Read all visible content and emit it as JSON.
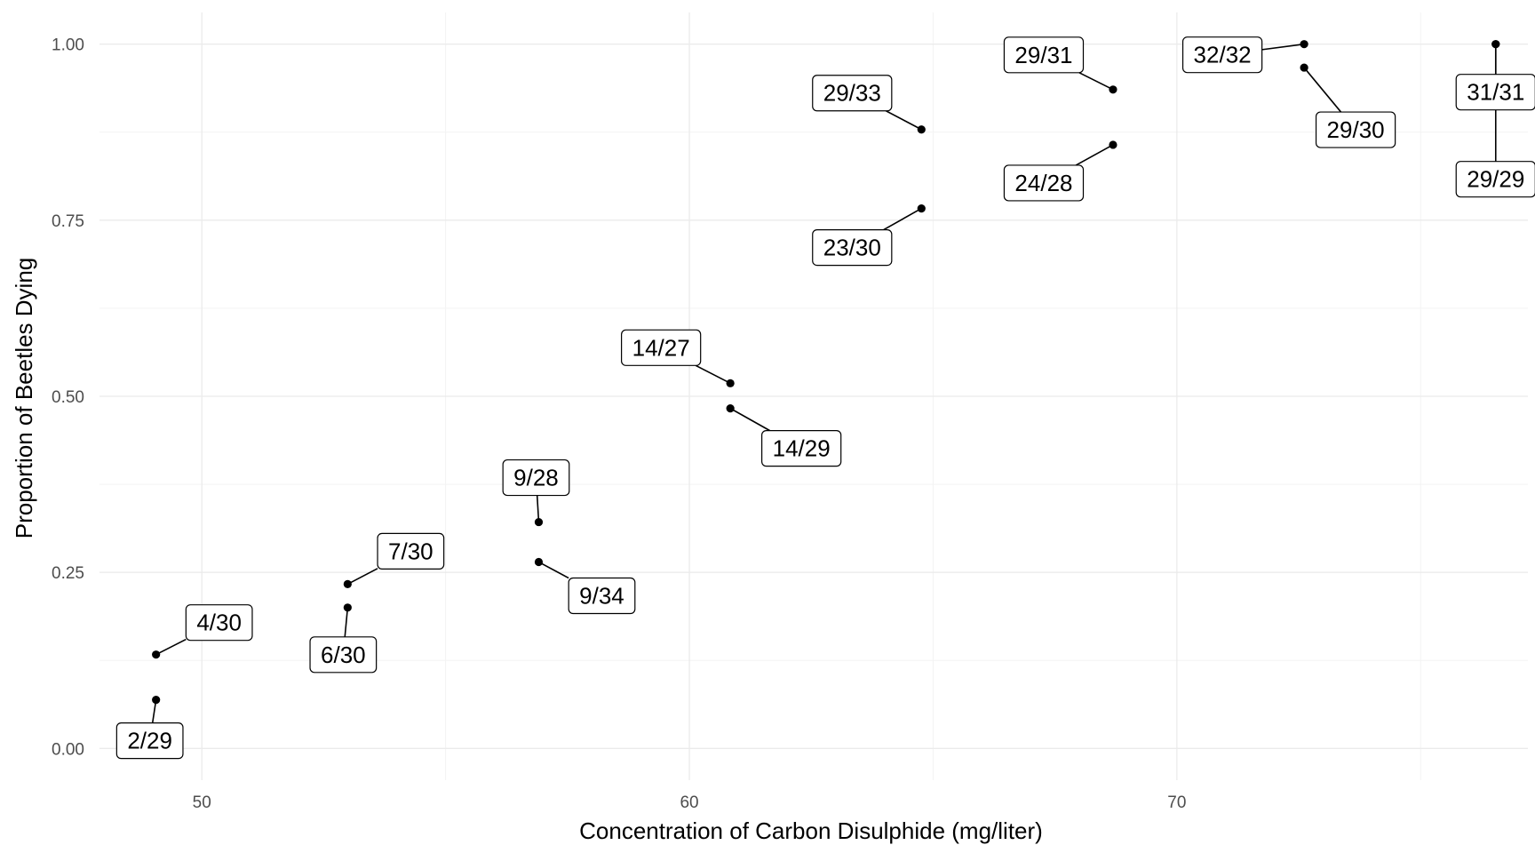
{
  "chart_data": {
    "type": "scatter",
    "title": "",
    "xlabel": "Concentration of Carbon Disulphide (mg/liter)",
    "ylabel": "Proportion of Beetles Dying",
    "xlim": [
      47.9,
      77.2
    ],
    "ylim": [
      -0.045,
      1.045
    ],
    "x_ticks": [
      50,
      60,
      70
    ],
    "x_tick_labels": [
      "50",
      "60",
      "70"
    ],
    "y_ticks": [
      0,
      0.25,
      0.5,
      0.75,
      1
    ],
    "y_tick_labels": [
      "0.00",
      "0.25",
      "0.50",
      "0.75",
      "1.00"
    ],
    "grid": true,
    "legend": "none",
    "points": [
      {
        "x": 49.06,
        "y": 0.069,
        "label": "2/29"
      },
      {
        "x": 49.06,
        "y": 0.1333,
        "label": "4/30"
      },
      {
        "x": 52.99,
        "y": 0.2,
        "label": "6/30"
      },
      {
        "x": 52.99,
        "y": 0.2333,
        "label": "7/30"
      },
      {
        "x": 56.91,
        "y": 0.2647,
        "label": "9/34"
      },
      {
        "x": 56.91,
        "y": 0.3214,
        "label": "9/28"
      },
      {
        "x": 60.84,
        "y": 0.4828,
        "label": "14/29"
      },
      {
        "x": 60.84,
        "y": 0.5185,
        "label": "14/27"
      },
      {
        "x": 64.76,
        "y": 0.7667,
        "label": "23/30"
      },
      {
        "x": 64.76,
        "y": 0.8788,
        "label": "29/33"
      },
      {
        "x": 68.69,
        "y": 0.8571,
        "label": "24/28"
      },
      {
        "x": 68.69,
        "y": 0.9355,
        "label": "29/31"
      },
      {
        "x": 72.61,
        "y": 0.9667,
        "label": "29/30"
      },
      {
        "x": 72.61,
        "y": 1.0,
        "label": "32/32"
      },
      {
        "x": 76.54,
        "y": 1.0,
        "label": "29/29"
      },
      {
        "x": 76.54,
        "y": 1.0,
        "label": "31/31"
      }
    ]
  }
}
